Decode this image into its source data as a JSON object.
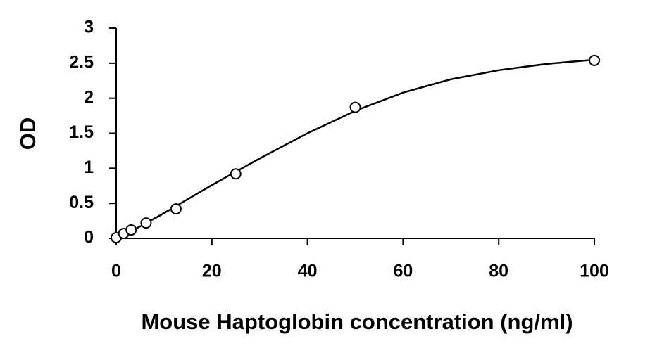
{
  "chart_data": {
    "type": "scatter",
    "xlabel": "Mouse Haptoglobin concentration (ng/ml)",
    "ylabel": "OD",
    "xlim": [
      0,
      100
    ],
    "xticks": [
      0,
      20,
      40,
      60,
      80,
      100
    ],
    "ylim": [
      0,
      3
    ],
    "yticks": [
      0,
      0.5,
      1,
      1.5,
      2,
      2.5,
      3
    ],
    "grid": false,
    "series": [
      {
        "kind": "points",
        "color": "#000000",
        "x": [
          0,
          1.56,
          3.125,
          6.25,
          12.5,
          25,
          50,
          100
        ],
        "values": [
          0.01,
          0.07,
          0.12,
          0.22,
          0.42,
          0.92,
          1.87,
          2.54
        ]
      },
      {
        "kind": "line",
        "color": "#000000",
        "x": [
          0,
          5,
          10,
          15,
          20,
          25,
          30,
          40,
          50,
          60,
          70,
          80,
          90,
          100
        ],
        "values": [
          0,
          0.17,
          0.36,
          0.56,
          0.76,
          0.95,
          1.14,
          1.5,
          1.82,
          2.08,
          2.27,
          2.4,
          2.49,
          2.55
        ]
      }
    ]
  }
}
